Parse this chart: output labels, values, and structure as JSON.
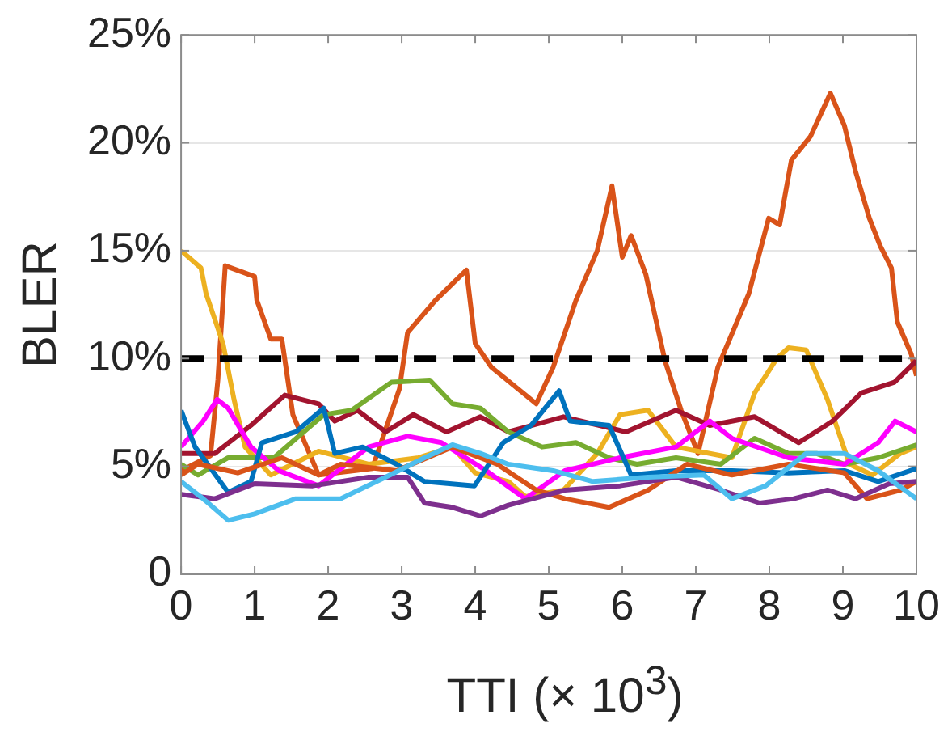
{
  "chart_data": {
    "type": "line",
    "xlabel": "TTI (× 10$^{3}$)",
    "ylabel": "BLER",
    "xlim": [
      0,
      10
    ],
    "xticks": [
      0,
      1,
      2,
      3,
      4,
      5,
      6,
      7,
      8,
      9,
      10
    ],
    "ylim": [
      0,
      25
    ],
    "yticks": [
      {
        "value": 0,
        "label": "0"
      },
      {
        "value": 5,
        "label": "5%"
      },
      {
        "value": 10,
        "label": "10%"
      },
      {
        "value": 15,
        "label": "15%"
      },
      {
        "value": 20,
        "label": "20%"
      },
      {
        "value": 25,
        "label": "25%"
      }
    ],
    "grid": "y",
    "legend": false,
    "marker": "none",
    "line_style": "solid",
    "ref_lines": [
      {
        "axis": "y",
        "value": 10,
        "color": "#000000",
        "line_style": "dashed"
      }
    ],
    "series": [
      {
        "color": "#4dbeee",
        "x": [
          0,
          0.3,
          0.64,
          1.0,
          1.56,
          2.17,
          2.78,
          3.31,
          3.69,
          4.07,
          4.45,
          5.06,
          5.6,
          6.35,
          7.11,
          7.49,
          7.95,
          8.5,
          9.02,
          9.48,
          10
        ],
        "values": [
          4.3,
          3.5,
          2.5,
          2.8,
          3.5,
          3.5,
          4.5,
          5.4,
          6.0,
          5.6,
          5.1,
          4.8,
          4.3,
          4.5,
          4.6,
          3.5,
          4.1,
          5.6,
          5.6,
          4.8,
          3.5
        ]
      },
      {
        "color": "#7e2f8e",
        "x": [
          0,
          0.46,
          1.0,
          1.79,
          2.55,
          3.08,
          3.31,
          3.69,
          4.07,
          4.45,
          5.22,
          5.97,
          6.73,
          7.34,
          7.87,
          8.33,
          8.79,
          9.17,
          9.63,
          10
        ],
        "values": [
          3.7,
          3.5,
          4.2,
          4.1,
          4.5,
          4.5,
          3.3,
          3.1,
          2.7,
          3.2,
          3.9,
          4.1,
          4.5,
          3.9,
          3.3,
          3.5,
          3.9,
          3.5,
          4.2,
          4.3
        ]
      },
      {
        "color": "#d95319",
        "x": [
          0,
          0.23,
          0.77,
          1.37,
          1.87,
          2.17,
          2.93,
          3.69,
          4.3,
          4.83,
          5.22,
          5.82,
          6.35,
          6.88,
          7.49,
          8.26,
          9.02,
          9.33,
          9.78,
          10
        ],
        "values": [
          4.6,
          5.1,
          4.7,
          5.4,
          4.6,
          5.1,
          4.8,
          5.9,
          5.1,
          3.9,
          3.5,
          3.1,
          3.9,
          5.1,
          4.6,
          5.1,
          4.7,
          3.5,
          3.9,
          4.3
        ]
      },
      {
        "color": "#0072bd",
        "x": [
          0,
          0.19,
          0.64,
          0.95,
          1.1,
          1.56,
          1.94,
          2.09,
          2.47,
          2.93,
          3.31,
          3.99,
          4.38,
          4.76,
          5.14,
          5.29,
          5.82,
          6.12,
          6.73,
          7.49,
          8.26,
          9.02,
          9.48,
          10
        ],
        "values": [
          7.6,
          5.9,
          3.8,
          4.3,
          6.1,
          6.6,
          7.7,
          5.6,
          5.9,
          5.1,
          4.3,
          4.1,
          6.1,
          6.9,
          8.5,
          7.1,
          6.9,
          4.6,
          4.8,
          4.8,
          4.7,
          4.8,
          4.3,
          4.9
        ]
      },
      {
        "color": "#ff00ff",
        "x": [
          0,
          0.3,
          0.49,
          0.64,
          0.95,
          1.33,
          1.87,
          2.55,
          3.08,
          3.54,
          4.15,
          4.68,
          5.22,
          5.97,
          6.73,
          7.19,
          7.49,
          8.26,
          9.02,
          9.48,
          9.71,
          10
        ],
        "values": [
          5.9,
          7.1,
          8.1,
          7.7,
          5.9,
          4.8,
          4.1,
          5.9,
          6.4,
          6.1,
          4.8,
          3.5,
          4.8,
          5.4,
          5.9,
          7.1,
          6.3,
          5.4,
          5.1,
          6.1,
          7.1,
          6.6
        ]
      },
      {
        "color": "#77ac30",
        "x": [
          0,
          0.23,
          0.64,
          1.26,
          1.94,
          2.32,
          2.86,
          3.38,
          3.69,
          4.07,
          4.45,
          4.91,
          5.37,
          5.82,
          6.2,
          6.73,
          7.34,
          7.8,
          8.26,
          8.64,
          9.02,
          9.48,
          10
        ],
        "values": [
          5.1,
          4.6,
          5.4,
          5.4,
          7.4,
          7.6,
          8.9,
          9.0,
          7.9,
          7.7,
          6.6,
          5.9,
          6.1,
          5.4,
          5.1,
          5.4,
          5.1,
          6.3,
          5.6,
          5.6,
          5.1,
          5.4,
          6.0
        ]
      },
      {
        "color": "#a2142f",
        "x": [
          0,
          0.46,
          0.95,
          1.41,
          1.87,
          2.09,
          2.4,
          2.78,
          3.16,
          3.61,
          4.07,
          4.45,
          5.2,
          6.05,
          6.73,
          7.19,
          7.8,
          8.4,
          8.86,
          9.25,
          9.7,
          10
        ],
        "values": [
          5.6,
          5.6,
          6.9,
          8.3,
          7.9,
          7.1,
          7.6,
          6.6,
          7.4,
          6.6,
          7.3,
          6.6,
          7.3,
          6.6,
          7.6,
          6.9,
          7.3,
          6.1,
          7.1,
          8.4,
          8.9,
          9.9
        ]
      },
      {
        "color": "#edb120",
        "x": [
          0,
          0.27,
          0.34,
          0.57,
          0.72,
          0.87,
          1.22,
          1.87,
          2.55,
          3.23,
          3.69,
          4.0,
          4.45,
          4.68,
          5.2,
          5.66,
          5.97,
          6.35,
          6.73,
          7.49,
          7.8,
          8.1,
          8.26,
          8.5,
          8.79,
          9.09,
          9.4,
          9.78,
          10
        ],
        "values": [
          15.0,
          14.2,
          13.0,
          10.7,
          8.1,
          5.9,
          4.6,
          5.7,
          5.1,
          5.4,
          5.9,
          4.7,
          4.3,
          3.6,
          3.9,
          5.6,
          7.4,
          7.6,
          5.9,
          5.4,
          8.4,
          10.0,
          10.5,
          10.4,
          8.1,
          5.1,
          4.6,
          5.6,
          5.9
        ]
      },
      {
        "color": "#d95319",
        "x": [
          0,
          0.4,
          0.5,
          0.6,
          1.0,
          1.03,
          1.22,
          1.37,
          1.52,
          1.87,
          2.6,
          2.97,
          3.08,
          3.46,
          3.88,
          4.0,
          4.22,
          4.83,
          5.06,
          5.37,
          5.66,
          5.86,
          6.0,
          6.12,
          6.32,
          6.58,
          6.8,
          7.03,
          7.3,
          7.72,
          7.99,
          8.14,
          8.3,
          8.56,
          8.83,
          9.02,
          9.17,
          9.36,
          9.51,
          9.66,
          9.74,
          9.93,
          10
        ],
        "values": [
          4.8,
          5.5,
          9.0,
          14.3,
          13.8,
          12.7,
          10.9,
          10.9,
          7.4,
          4.6,
          4.9,
          8.6,
          11.2,
          12.7,
          14.1,
          10.7,
          9.6,
          7.9,
          9.6,
          12.7,
          15.0,
          18.0,
          14.7,
          15.7,
          13.9,
          9.9,
          7.6,
          5.6,
          9.6,
          13.0,
          16.5,
          16.2,
          19.2,
          20.3,
          22.3,
          20.8,
          18.7,
          16.5,
          15.2,
          14.2,
          11.7,
          10.2,
          9.2
        ]
      }
    ]
  }
}
